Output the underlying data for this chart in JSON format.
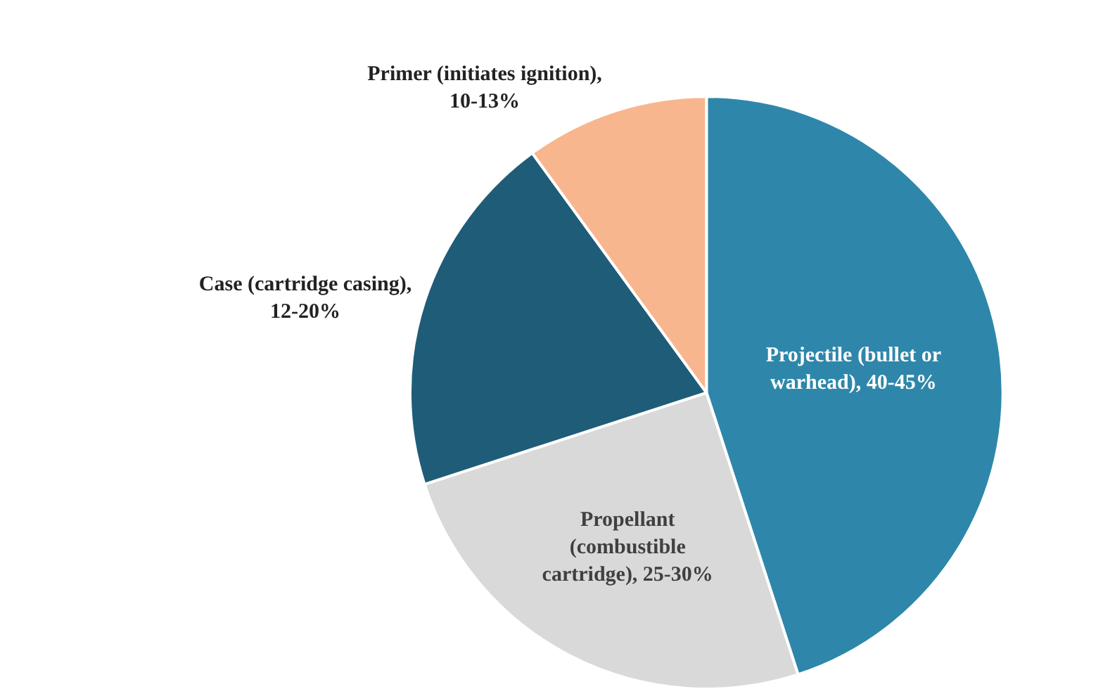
{
  "chart_data": {
    "type": "pie",
    "categories": [
      "Projectile (bullet or warhead), 40-45%",
      "Propellant (combustible cartridge), 25-30%",
      "Case (cartridge casing), 12-20%",
      "Primer (initiates ignition), 10-13%"
    ],
    "values": [
      45,
      25,
      20,
      10
    ],
    "colors": [
      "#2e87aa",
      "#d9d9d9",
      "#1f5c78",
      "#f8b68e"
    ],
    "legend": false
  }
}
